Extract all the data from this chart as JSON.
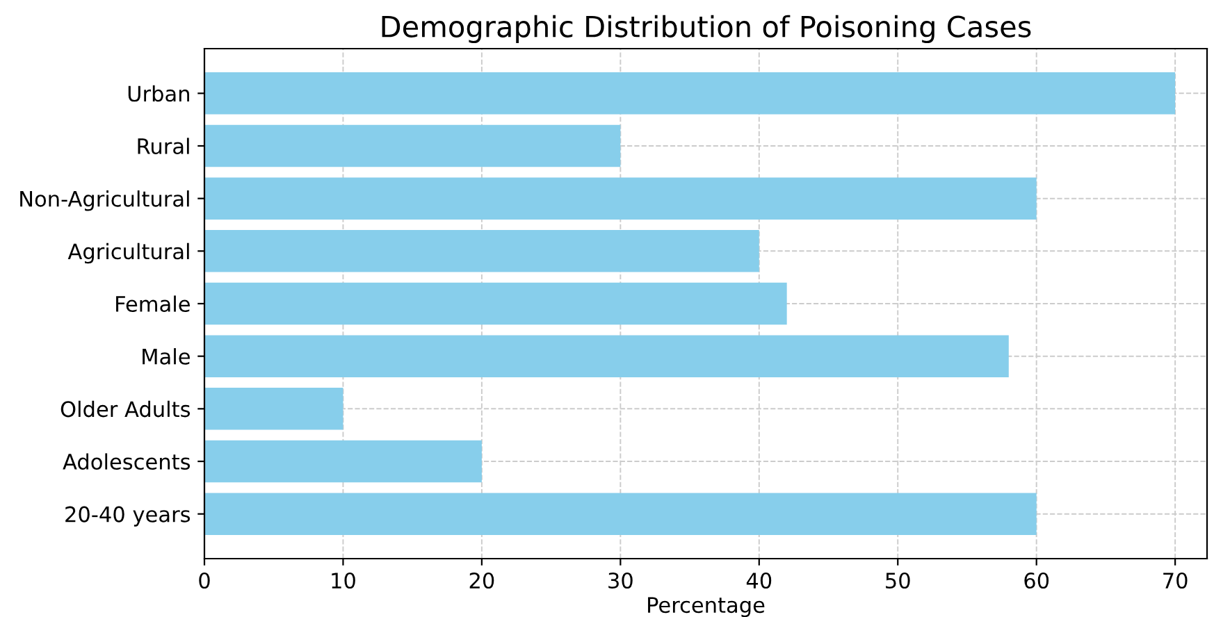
{
  "chart_data": {
    "type": "bar",
    "orientation": "horizontal",
    "title": "Demographic Distribution of Poisoning Cases",
    "xlabel": "Percentage",
    "categories": [
      "Urban",
      "Rural",
      "Non-Agricultural",
      "Agricultural",
      "Female",
      "Male",
      "Older Adults",
      "Adolescents",
      "20-40 years"
    ],
    "values": [
      70,
      30,
      60,
      40,
      42,
      58,
      10,
      20,
      60
    ],
    "color": "#87ceeb",
    "xlim": [
      0,
      72.3
    ],
    "xticks": [
      0,
      10,
      20,
      30,
      40,
      50,
      60,
      70
    ],
    "grid": true,
    "line_style": "dashed"
  }
}
